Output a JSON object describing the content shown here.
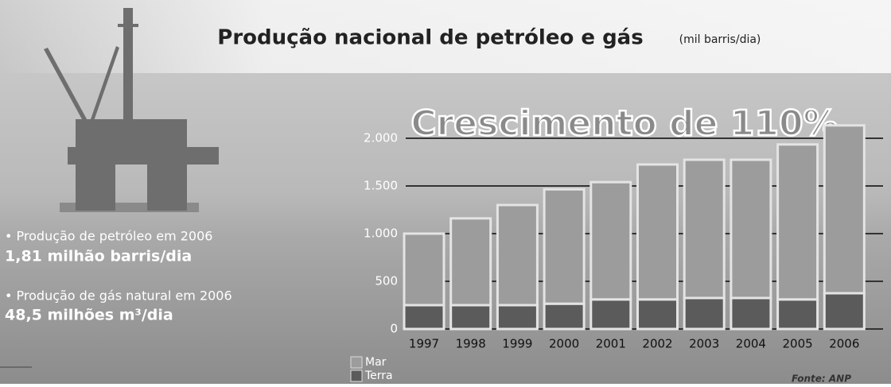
{
  "chart_data": {
    "type": "stacked-bar",
    "title": "Produção nacional de petróleo e gás",
    "subtitle": "(mil barris/dia)",
    "headline": "Crescimento de 110%",
    "annotations": [
      {
        "label": "• Produção de petróleo em 2006",
        "value": "1,81 milhão barris/dia"
      },
      {
        "label": "• Produção de gás natural em 2006",
        "value": "48,5 milhões m³/dia"
      }
    ],
    "source": "Fonte: ANP",
    "categories": [
      "1997",
      "1998",
      "1999",
      "2000",
      "2001",
      "2002",
      "2003",
      "2004",
      "2005",
      "2006"
    ],
    "series": [
      {
        "name": "Terra",
        "color": "#5b5b5b",
        "values": [
          250,
          250,
          250,
          265,
          310,
          310,
          325,
          325,
          310,
          375
        ]
      },
      {
        "name": "Mar",
        "color": "#9c9c9c",
        "values": [
          750,
          910,
          1050,
          1200,
          1230,
          1415,
          1450,
          1450,
          1625,
          1760
        ]
      }
    ],
    "ylim": [
      0,
      2200
    ],
    "yticks": [
      0,
      500,
      {
        "value": 1000,
        "label": "1.000"
      },
      {
        "value": 1500,
        "label": "1.500"
      },
      {
        "value": 2000,
        "label": "2.000"
      }
    ],
    "grid": true
  }
}
